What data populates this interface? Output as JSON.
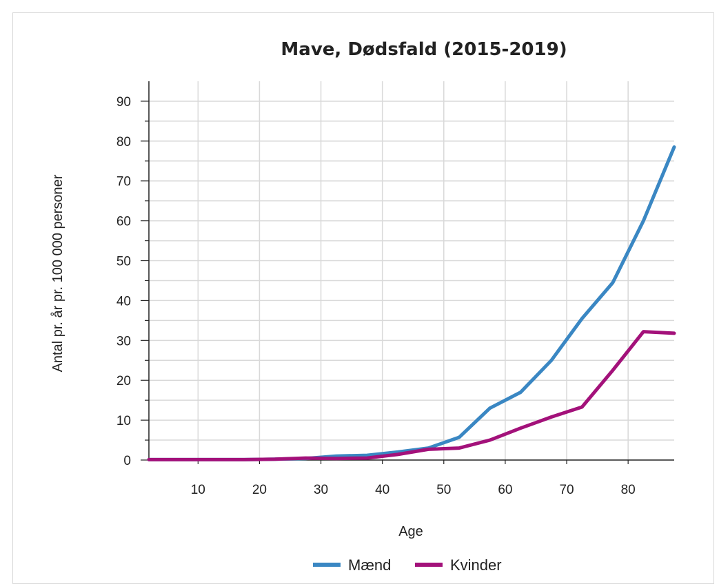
{
  "chart_data": {
    "type": "line",
    "title": "Mave, Dødsfald (2015-2019)",
    "xlabel": "Age",
    "ylabel": "Antal pr. år pr. 100 000 personer",
    "xlim": [
      2,
      87.5
    ],
    "ylim": [
      0,
      95
    ],
    "x_ticks": [
      "10",
      "20",
      "30",
      "40",
      "50",
      "60",
      "70",
      "80"
    ],
    "y_ticks": [
      "0",
      "10",
      "20",
      "30",
      "40",
      "50",
      "60",
      "70",
      "80",
      "90"
    ],
    "grid": true,
    "legend_position": "bottom",
    "x": [
      2,
      7.5,
      12.5,
      17.5,
      22.5,
      27.5,
      32.5,
      37.5,
      42.5,
      47.5,
      52.5,
      57.5,
      62.5,
      67.5,
      72.5,
      77.5,
      82.5,
      87.5
    ],
    "series": [
      {
        "name": "Mænd",
        "color": "#3a87c3",
        "values": [
          0.1,
          0.1,
          0.1,
          0.1,
          0.2,
          0.4,
          1.0,
          1.2,
          2.0,
          3.0,
          5.7,
          13.0,
          17.0,
          25.0,
          35.5,
          44.5,
          60.0,
          78.5
        ]
      },
      {
        "name": "Kvinder",
        "color": "#a3117a",
        "values": [
          0.1,
          0.1,
          0.1,
          0.1,
          0.2,
          0.5,
          0.4,
          0.5,
          1.4,
          2.7,
          3.0,
          5.0,
          8.0,
          10.8,
          13.3,
          22.5,
          32.2,
          31.8
        ]
      }
    ]
  }
}
